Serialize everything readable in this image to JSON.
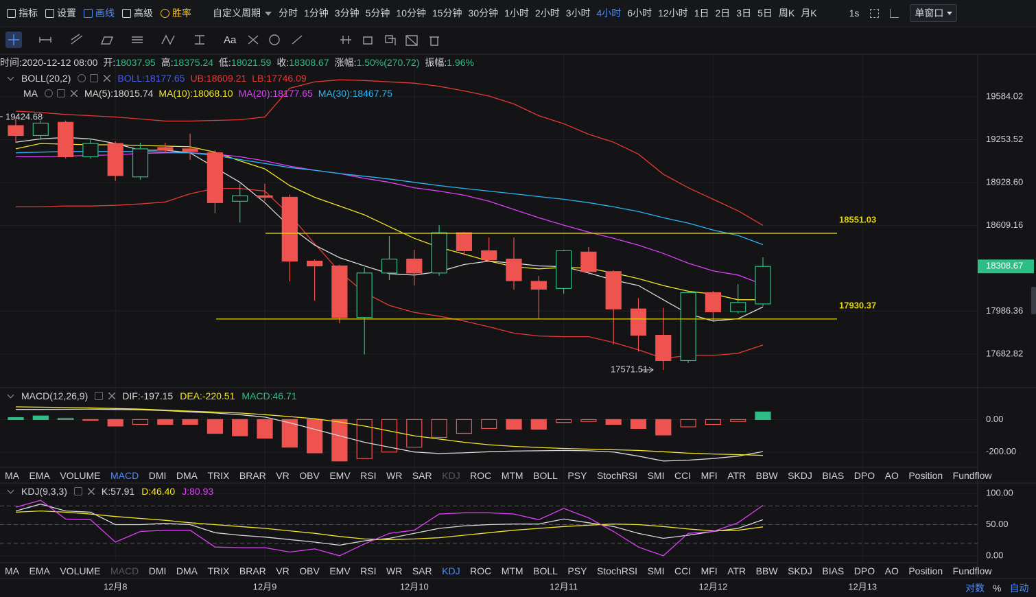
{
  "toolbar": {
    "menu": [
      {
        "text": "指标",
        "color": "#d1d4dc"
      },
      {
        "text": "设置",
        "color": "#d1d4dc"
      },
      {
        "text": "画线",
        "color": "#4d8cf5"
      },
      {
        "text": "高级",
        "color": "#d1d4dc"
      },
      {
        "text": "胜率",
        "color": "#f0b90b"
      }
    ],
    "custom_period": "自定义周期",
    "periods": [
      "分时",
      "1分钟",
      "3分钟",
      "5分钟",
      "10分钟",
      "15分钟",
      "30分钟",
      "1小时",
      "2小时",
      "3小时",
      "4小时",
      "6小时",
      "12小时",
      "1日",
      "2日",
      "3日",
      "5日",
      "周K",
      "月K"
    ],
    "active_period": 10,
    "interval": "1s",
    "window": "单窗口",
    "text_tool": "Aa"
  },
  "info": [
    {
      "label": "时间:",
      "value": "2020-12-12 08:00",
      "color": "#d1d4dc"
    },
    {
      "label": "开:",
      "value": "18037.95",
      "color": "#2ebd85"
    },
    {
      "label": "高:",
      "value": "18375.24",
      "color": "#2ebd85"
    },
    {
      "label": "低:",
      "value": "18021.59",
      "color": "#2ebd85"
    },
    {
      "label": "收:",
      "value": "18308.67",
      "color": "#2ebd85"
    },
    {
      "label": "涨幅:",
      "value": "1.50%(270.72)",
      "color": "#2ebd85"
    },
    {
      "label": "振幅:",
      "value": "1.96%",
      "color": "#2ebd85"
    }
  ],
  "boll": {
    "title": "BOLL(20,2)",
    "mid": "BOLL:18177.65",
    "mid_color": "#4a5cf0"
  },
  "ma_title": "MA",
  "chart_data": [
    {
      "type": "candlestick",
      "log": true,
      "ylim": [
        17448,
        19912
      ],
      "yticks": [
        19584.02,
        19253.52,
        {
          "value": 18928.6,
          "label": "18928.60"
        },
        18609.16,
        17986.36,
        17682.82
      ],
      "up_color": "#2ebd85",
      "down_color": "#ef5350",
      "hollow_up": true,
      "open": [
        19361,
        19285,
        19386,
        19123,
        19224,
        18971,
        19193,
        19183,
        19153,
        18788,
        18829,
        18818,
        18347,
        18312,
        17941,
        18261,
        18362,
        18261,
        18555,
        18423,
        18362,
        18200,
        18149,
        18413,
        18271,
        18002,
        17815,
        17637,
        18119,
        17982,
        18037.95
      ],
      "high": [
        19424.68,
        19400,
        19400,
        19260,
        19240,
        19230,
        19230,
        19300,
        19170,
        18920,
        18920,
        18840,
        18360,
        18320,
        18300,
        18530,
        18430,
        18610,
        18560,
        18520,
        18520,
        18240,
        18430,
        18450,
        18280,
        18080,
        18010,
        18130,
        18130,
        18180,
        18375.24
      ],
      "low": [
        19230,
        19250,
        19110,
        19110,
        18940,
        18950,
        19150,
        19100,
        18700,
        18630,
        18790,
        18200,
        18060,
        17900,
        17680,
        18210,
        18170,
        18240,
        18390,
        18340,
        18140,
        17930,
        18110,
        18250,
        17750,
        17700,
        17571.51,
        17620,
        17920,
        17970,
        18021.59
      ],
      "close": [
        19285,
        19380,
        19123,
        19224,
        18981,
        19183,
        19173,
        19163,
        18778,
        18829,
        18818,
        18347,
        18312,
        17941,
        18261,
        18362,
        18261,
        18555,
        18423,
        18357,
        18205,
        18144,
        18423,
        18271,
        18002,
        17815,
        17637,
        18119,
        17982,
        18048,
        18308.67
      ],
      "series": [
        {
          "name": "UB:18609.21",
          "color": "#e53935",
          "values": [
            19472,
            19462,
            19447,
            19437,
            19427,
            19412,
            19396,
            19396,
            19401,
            19406,
            19427,
            19650,
            19700,
            19716,
            19711,
            19700,
            19690,
            19665,
            19630,
            19589,
            19528,
            19437,
            19376,
            19295,
            19234,
            19143,
            18991,
            18889,
            18803,
            18717,
            18609.21
          ]
        },
        {
          "name": "LB:17746.09",
          "color": "#e53935",
          "values": [
            18747,
            18747,
            18753,
            18753,
            18758,
            18768,
            18783,
            18844,
            18884,
            18884,
            18864,
            18687,
            18474,
            18271,
            18119,
            18027,
            17977,
            17951,
            17916,
            17875,
            17830,
            17810,
            17805,
            17805,
            17764,
            17713,
            17652,
            17673,
            17673,
            17688,
            17746.09
          ]
        },
        {
          "name": "MA(5):18015.74",
          "color": "#d9d9d9",
          "values": [
            19234,
            19259,
            19270,
            19259,
            19224,
            19173,
            19173,
            19153,
            19041,
            18930,
            18778,
            18600,
            18464,
            18372,
            18312,
            18256,
            18246,
            18271,
            18322,
            18347,
            18332,
            18312,
            18307,
            18261,
            18210,
            18170,
            18068,
            17967,
            17916,
            17932,
            18015.74
          ]
        },
        {
          "name": "MA(10):18068.10",
          "color": "#f5e625",
          "values": [
            19183,
            19224,
            19219,
            19214,
            19214,
            19209,
            19204,
            19199,
            19158,
            19092,
            19031,
            18905,
            18818,
            18753,
            18687,
            18600,
            18514,
            18448,
            18398,
            18347,
            18307,
            18291,
            18302,
            18296,
            18261,
            18220,
            18170,
            18129,
            18109,
            18068,
            18068.1
          ]
        },
        {
          "name": "MA(20):18177.65",
          "color": "#e040fb",
          "values": [
            19123,
            19123,
            19128,
            19133,
            19138,
            19148,
            19153,
            19153,
            19143,
            19123,
            19092,
            19052,
            19021,
            18996,
            18960,
            18930,
            18889,
            18864,
            18834,
            18788,
            18727,
            18666,
            18611,
            18560,
            18514,
            18464,
            18403,
            18332,
            18276,
            18246,
            18177.65
          ]
        },
        {
          "name": "MA(30):18467.75",
          "color": "#29b6f6",
          "values": [
            19153,
            19158,
            19163,
            19163,
            19163,
            19163,
            19158,
            19153,
            19133,
            19102,
            19072,
            19041,
            19021,
            18996,
            18976,
            18955,
            18930,
            18905,
            18884,
            18864,
            18844,
            18823,
            18803,
            18778,
            18747,
            18712,
            18666,
            18626,
            18575,
            18535,
            18467.75
          ]
        }
      ],
      "hlines": [
        18551.03,
        17930.37
      ],
      "hline_color": "#e6d600",
      "x_labels": [
        "12月8",
        "12月9",
        "12月10",
        "12月11",
        "12月12",
        "12月13"
      ]
    },
    {
      "type": "macd",
      "title": "MACD(12,26,9)",
      "ylim": [
        -294,
        196
      ],
      "yticks": [
        {
          "value": 0,
          "label": "0.00"
        },
        {
          "value": -200,
          "label": "-200.00"
        }
      ],
      "histogram": {
        "name": "MACD:46.71",
        "color": "#2ebd85",
        "down_color": "#ef5350",
        "values": [
          12,
          22,
          8,
          -5,
          -40,
          -30,
          -30,
          -30,
          -85,
          -100,
          -115,
          -170,
          -205,
          -255,
          -240,
          -200,
          -170,
          -110,
          -85,
          -55,
          -60,
          -60,
          -18,
          -12,
          -30,
          -55,
          -95,
          -45,
          -30,
          -12,
          46.71
        ]
      },
      "series": [
        {
          "name": "DIF:-197.15",
          "color": "#d9d9d9",
          "values": [
            62,
            62,
            63,
            64,
            62,
            60,
            55,
            47,
            40,
            30,
            15,
            -20,
            -60,
            -100,
            -140,
            -170,
            -200,
            -209,
            -205,
            -198,
            -194,
            -192,
            -190,
            -192,
            -200,
            -225,
            -255,
            -250,
            -240,
            -225,
            -197.15
          ]
        },
        {
          "name": "DEA:-220.51",
          "color": "#f5e625",
          "values": [
            78,
            76,
            74,
            72,
            68,
            64,
            58,
            52,
            46,
            40,
            30,
            18,
            5,
            -15,
            -40,
            -70,
            -100,
            -120,
            -140,
            -155,
            -165,
            -172,
            -178,
            -182,
            -186,
            -190,
            -198,
            -207,
            -212,
            -216,
            -220.51
          ]
        }
      ]
    },
    {
      "type": "line",
      "title": "KDJ(9,3,3)",
      "ylim": [
        -11.1,
        116.7
      ],
      "yticks": [
        {
          "value": 100,
          "label": "100.00"
        },
        {
          "value": 50,
          "label": "50.00"
        },
        {
          "value": 0,
          "label": "0.00"
        }
      ],
      "levels": [
        80,
        50,
        20
      ],
      "series": [
        {
          "name": "K:57.91",
          "color": "#d9d9d9",
          "values": [
            72,
            83,
            72,
            70,
            50,
            50,
            52,
            50,
            37,
            33,
            30,
            26,
            22,
            17,
            24,
            28,
            36,
            44,
            48,
            50,
            51,
            51,
            59,
            53,
            47,
            36,
            28,
            33,
            39,
            44,
            57.91
          ]
        },
        {
          "name": "D:46.40",
          "color": "#f5e625",
          "values": [
            70,
            72,
            70,
            67,
            63,
            60,
            57,
            53,
            50,
            47,
            44,
            40,
            36,
            31,
            27,
            26,
            27,
            29,
            33,
            37,
            41,
            44,
            47,
            49,
            51,
            50,
            47,
            43,
            40,
            41,
            46.4
          ]
        },
        {
          "name": "J:80.93",
          "color": "#e040fb",
          "values": [
            78,
            89,
            59,
            58,
            22,
            39,
            41,
            41,
            14,
            13,
            13,
            6,
            11,
            0,
            19,
            36,
            41,
            67,
            69,
            69,
            67,
            58,
            76,
            61,
            39,
            14,
            0,
            36,
            39,
            53,
            80.93
          ]
        }
      ]
    }
  ],
  "indicators": [
    "MA",
    "EMA",
    "VOLUME",
    "MACD",
    "DMI",
    "DMA",
    "TRIX",
    "BRAR",
    "VR",
    "OBV",
    "EMV",
    "RSI",
    "WR",
    "SAR",
    "KDJ",
    "ROC",
    "MTM",
    "BOLL",
    "PSY",
    "StochRSI",
    "SMI",
    "CCI",
    "MFI",
    "ATR",
    "BBW",
    "SKDJ",
    "BIAS",
    "DPO",
    "AO",
    "Position",
    "Fundflow"
  ],
  "tab_rows": [
    {
      "active": 3,
      "disabled": 14
    },
    {
      "active": 14,
      "disabled": 3
    }
  ],
  "scale_modes": [
    {
      "text": "对数",
      "on": true
    },
    {
      "text": "%",
      "on": false
    },
    {
      "text": "自动",
      "on": true
    }
  ]
}
